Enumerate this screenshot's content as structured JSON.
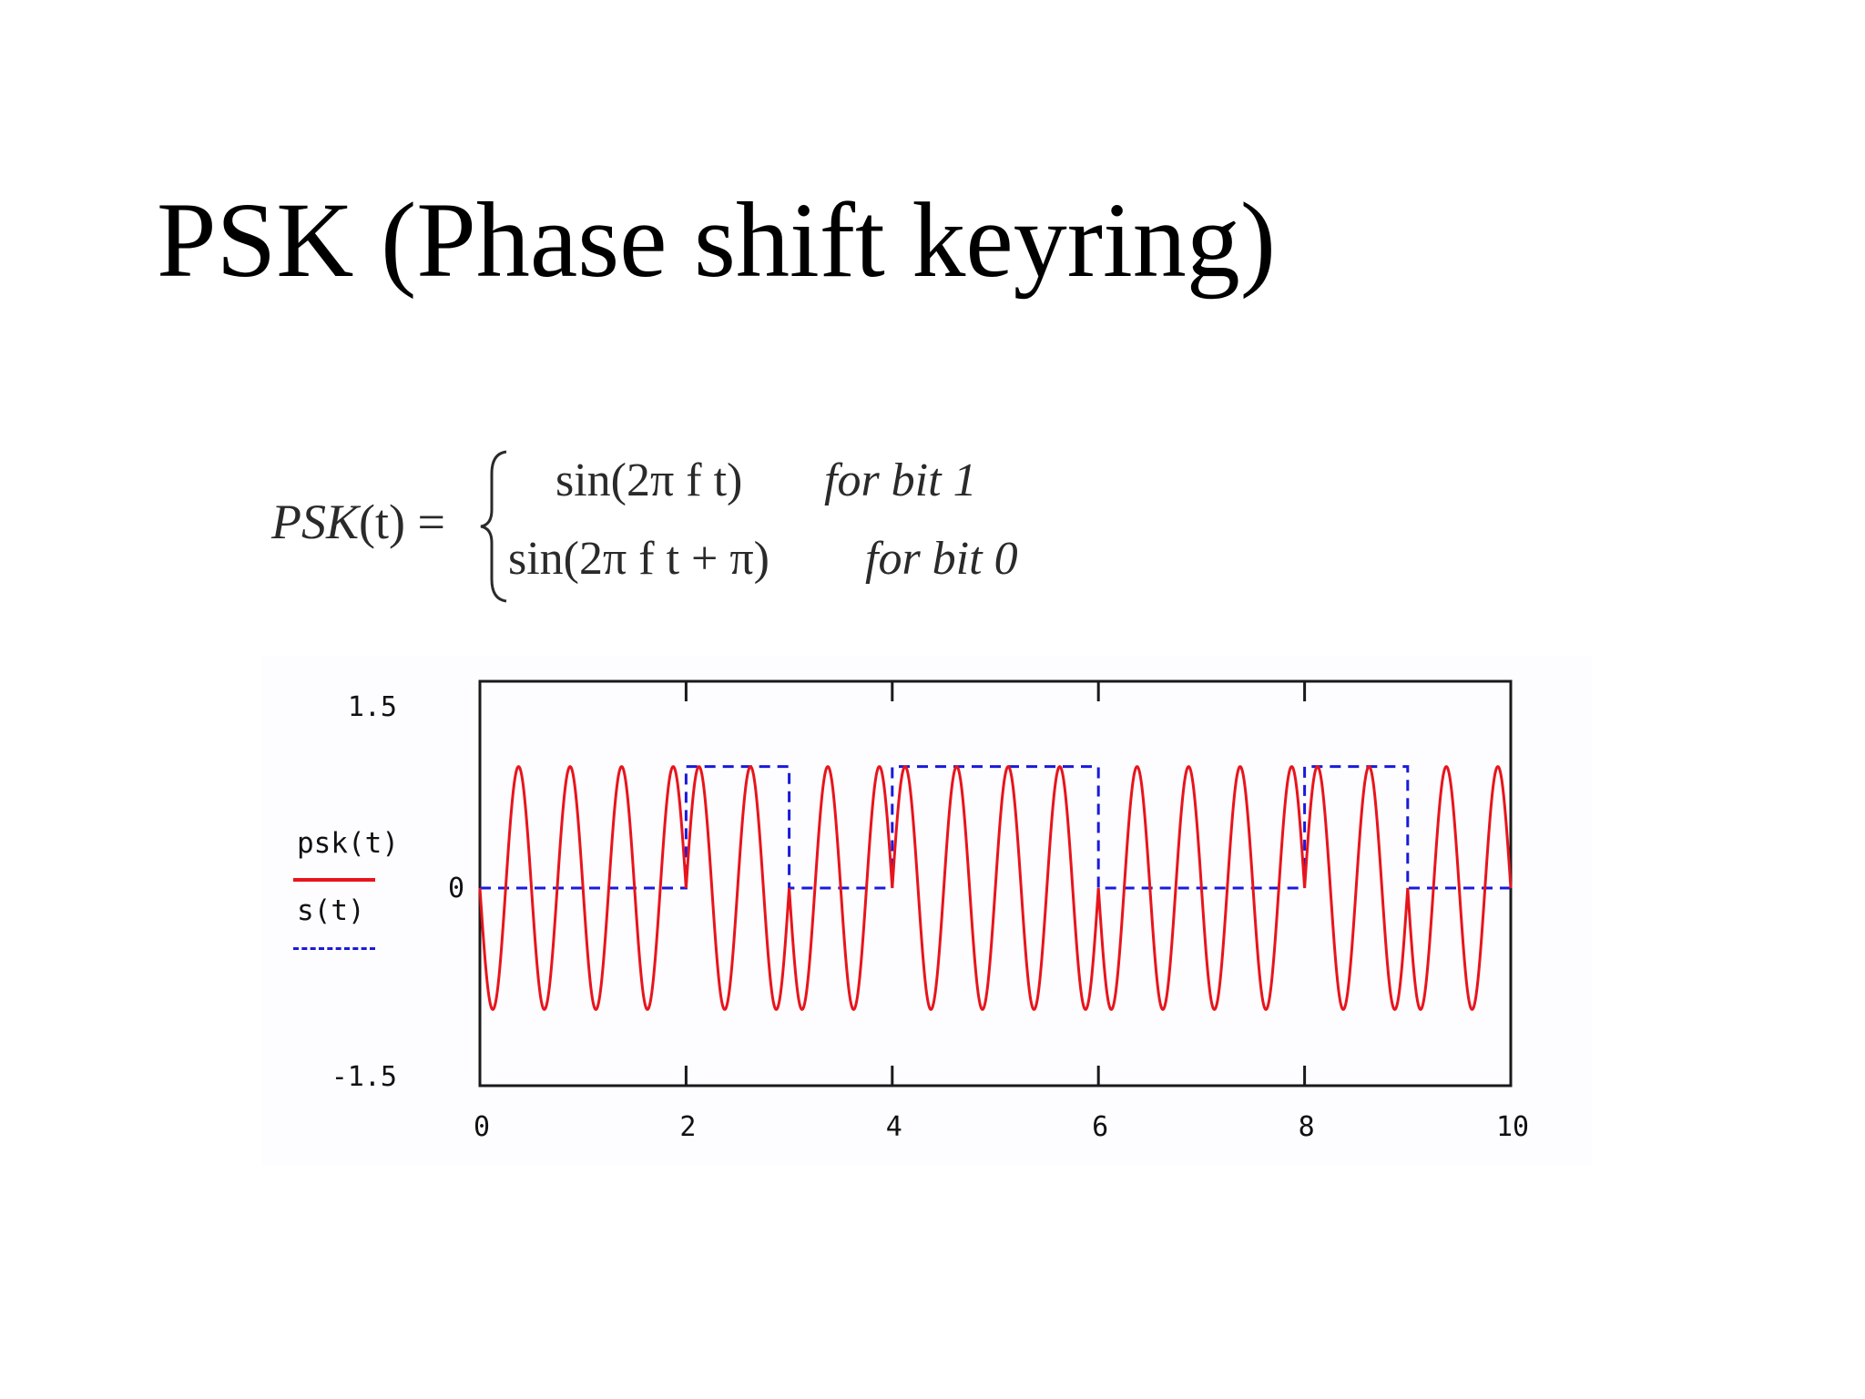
{
  "slide": {
    "title": "PSK (Phase shift keyring)"
  },
  "formula": {
    "lhs_name": "PSK",
    "lhs_arg": "(t) =",
    "case1_expr": "sin(2π f t)",
    "case1_cond": "for bit 1",
    "case2_expr": "sin(2π f t + π)",
    "case2_cond": "for bit 0"
  },
  "legend": {
    "series1_label": "psk(t)",
    "series2_label": "s(t)"
  },
  "chart_data": {
    "type": "line",
    "xlim": [
      0,
      10
    ],
    "ylim": [
      -1.5,
      1.5
    ],
    "xticks": [
      "0",
      "2",
      "4",
      "6",
      "8",
      "10"
    ],
    "yticks": [
      "1.5",
      "0",
      "-1.5"
    ],
    "grid": false,
    "legend_position": "left",
    "series": [
      {
        "name": "psk(t)",
        "color": "#e8141c",
        "style": "solid",
        "function": "sin(2π f t) where s(t)=1, sin(2π f t + π) where s(t)=0",
        "frequency": 2,
        "amplitude": 1
      },
      {
        "name": "s(t)",
        "color": "#1a1adb",
        "style": "dashed",
        "type": "step",
        "breakpoints": [
          0,
          2,
          3,
          4,
          6,
          8,
          9,
          10
        ],
        "levels": [
          0,
          1,
          0,
          1,
          0,
          1,
          0
        ]
      }
    ]
  }
}
